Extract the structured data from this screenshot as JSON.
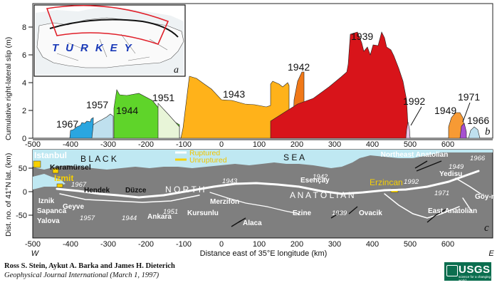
{
  "top_panel": {
    "ylabel": "Cumulative right-lateral slip (m)",
    "yticks": [
      "0",
      "2",
      "4",
      "6",
      "8"
    ],
    "panel_letter": "b",
    "inset_label": "TURKEY",
    "inset_letter": "a",
    "ruptures": [
      {
        "year": "1967",
        "color": "#2aa6e0"
      },
      {
        "year": "1957",
        "color": "#bfe0ee"
      },
      {
        "year": "1944",
        "color": "#5fd42a"
      },
      {
        "year": "1951",
        "color": "#e8f5d8"
      },
      {
        "year": "1943",
        "color": "#ffb21a"
      },
      {
        "year": "1942",
        "color": "#f07818"
      },
      {
        "year": "1939",
        "color": "#d8141a"
      },
      {
        "year": "1992",
        "color": "#e7c3e7"
      },
      {
        "year": "1949",
        "color": "#f79a34"
      },
      {
        "year": "1971",
        "color": "#a650d0"
      },
      {
        "year": "1966",
        "color": "#bfe0ee"
      }
    ]
  },
  "bottom_panel": {
    "ylabel": "Dist. no. of 41°N lat. (km)",
    "yticks": [
      "-50",
      "0",
      "50"
    ],
    "xticks": [
      "-500",
      "-400",
      "-300",
      "-200",
      "-100",
      "0",
      "100",
      "200",
      "300",
      "400",
      "500",
      "600"
    ],
    "xlabel": "Distance east of 35°E longitude (km)",
    "west": "W",
    "east": "E",
    "panel_letter": "c",
    "legend": {
      "ruptured": "Ruptured",
      "unruptured": "Unruptured"
    },
    "places": {
      "istanbul": "Istanbul",
      "karamursel": "Karamürsel",
      "izmit": "Izmit",
      "black": "B L A C K",
      "sea": "S E A",
      "hendek": "Hendek",
      "duzce": "Düzce",
      "iznik": "Iznik",
      "geyve": "Geyve",
      "sapanca": "Sapanca",
      "yalova": "Yalova",
      "ankara": "Ankara",
      "kursunlu": "Kursunlu",
      "merzifon": "Merzifon",
      "esencay": "Esençay",
      "erzincan": "Erzincan",
      "ezine": "Ezine",
      "alaca": "Alaca",
      "ovacik": "Ovacik",
      "ne_anatolian": "Northeast Anatolian",
      "yedisu": "Yedisu",
      "e_anatolian": "East Anatolian",
      "goynuk": "Göy-nük",
      "north": "N O R T H",
      "anatolian": "A N A T O L I A N"
    },
    "years": {
      "y1967": "1967",
      "y1957": "1957",
      "y1944": "1944",
      "y1951": "1951",
      "y1943": "1943",
      "y1942": "1942",
      "y1939": "1939",
      "y1992": "1992",
      "y1949": "1949",
      "y1971": "1971",
      "y1966": "1966"
    }
  },
  "footer": {
    "authors": "Ross S. Stein, Aykut A. Barka and James H. Dieterich",
    "journal": "Geophysical Journal International (March 1, 1997)",
    "logo_word": "USGS",
    "logo_tagline": "science for a changing world"
  },
  "colors": {
    "land": "#7f7f7f",
    "sea": "#bfe8f2",
    "accent": "#0b6e4f"
  }
}
